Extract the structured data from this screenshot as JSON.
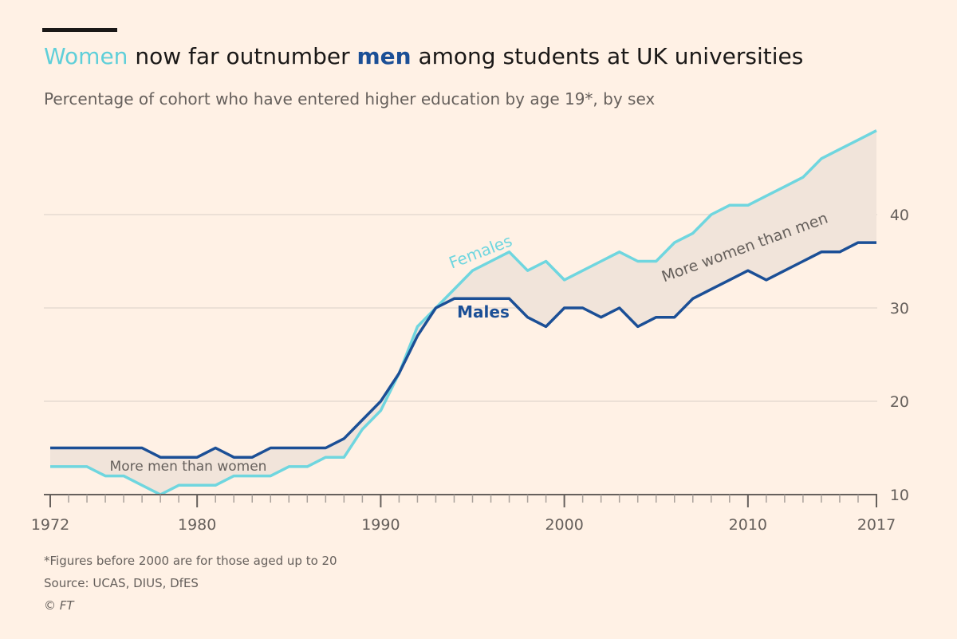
{
  "chart_data": {
    "type": "line",
    "title": [
      "Women",
      " now far outnumber ",
      "men",
      " among students at UK universities"
    ],
    "subtitle": "Percentage of cohort who have entered higher education by age 19*, by sex",
    "x": [
      1972,
      1973,
      1974,
      1975,
      1976,
      1977,
      1978,
      1979,
      1980,
      1981,
      1982,
      1983,
      1984,
      1985,
      1986,
      1987,
      1988,
      1989,
      1990,
      1991,
      1992,
      1993,
      1994,
      1995,
      1996,
      1997,
      1998,
      1999,
      2000,
      2001,
      2002,
      2003,
      2004,
      2005,
      2006,
      2007,
      2008,
      2009,
      2010,
      2011,
      2012,
      2013,
      2014,
      2015,
      2016,
      2017
    ],
    "series": [
      {
        "name": "Females",
        "color": "#6fd6df",
        "values": [
          13,
          13,
          13,
          12,
          12,
          11,
          10,
          11,
          11,
          11,
          12,
          12,
          12,
          13,
          13,
          14,
          14,
          17,
          19,
          23,
          28,
          30,
          32,
          34,
          35,
          36,
          34,
          35,
          33,
          34,
          35,
          36,
          35,
          35,
          37,
          38,
          40,
          41,
          41,
          42,
          43,
          44,
          46,
          47,
          48,
          49
        ]
      },
      {
        "name": "Males",
        "color": "#1b4f96",
        "values": [
          15,
          15,
          15,
          15,
          15,
          15,
          14,
          14,
          14,
          15,
          14,
          14,
          15,
          15,
          15,
          15,
          16,
          18,
          20,
          23,
          27,
          30,
          31,
          31,
          31,
          31,
          29,
          28,
          30,
          30,
          29,
          30,
          28,
          29,
          29,
          31,
          32,
          33,
          34,
          33,
          34,
          35,
          36,
          36,
          37,
          37
        ]
      }
    ],
    "annotations": [
      "More women than men",
      "More men than women"
    ],
    "xlim": [
      1972,
      2017
    ],
    "xticks": [
      1972,
      1980,
      1990,
      2000,
      2010,
      2017
    ],
    "ylim": [
      10,
      50
    ],
    "yticks": [
      10,
      20,
      30,
      40
    ],
    "grid": true,
    "footnote": "*Figures before 2000 are for those aged up to 20",
    "source": "Source: UCAS, DIUS, DfES",
    "credit": "© FT"
  }
}
